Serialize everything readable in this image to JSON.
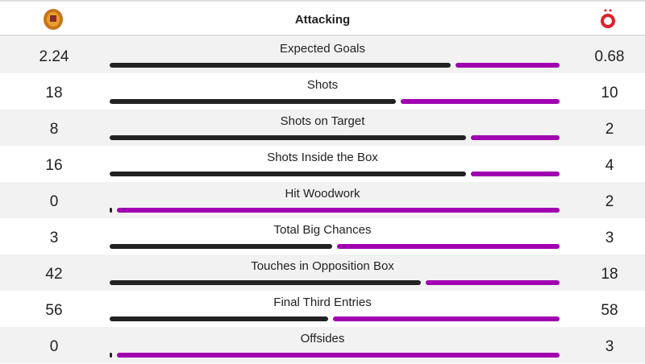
{
  "header": {
    "title": "Attacking",
    "home_logo": "motherwell-crest",
    "away_logo": "aberdeen-crest"
  },
  "colors": {
    "home": "#222222",
    "away": "#a000b0"
  },
  "stats": [
    {
      "label": "Expected Goals",
      "home": "2.24",
      "away": "0.68"
    },
    {
      "label": "Shots",
      "home": "18",
      "away": "10"
    },
    {
      "label": "Shots on Target",
      "home": "8",
      "away": "2"
    },
    {
      "label": "Shots Inside the Box",
      "home": "16",
      "away": "4"
    },
    {
      "label": "Hit Woodwork",
      "home": "0",
      "away": "2"
    },
    {
      "label": "Total Big Chances",
      "home": "3",
      "away": "3"
    },
    {
      "label": "Touches in Opposition Box",
      "home": "42",
      "away": "18"
    },
    {
      "label": "Final Third Entries",
      "home": "56",
      "away": "58"
    },
    {
      "label": "Offsides",
      "home": "0",
      "away": "3"
    }
  ]
}
